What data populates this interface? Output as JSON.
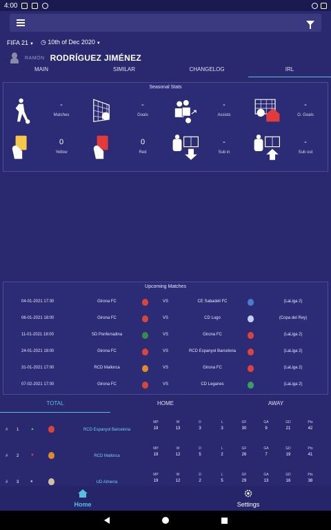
{
  "status": {
    "time": "4:00"
  },
  "selectors": {
    "game": "FIFA 21",
    "date": "10th of Dec 2020"
  },
  "player": {
    "first": "RAMÓN",
    "last": "RODRÍGUEZ JIMÉNEZ"
  },
  "tabs": [
    "MAIN",
    "SIMILAR",
    "CHANGELOG",
    "IRL"
  ],
  "stats": {
    "title": "Seasonal Stats",
    "items": [
      {
        "value": "-",
        "label": "Matches",
        "icon": "player-kick-icon"
      },
      {
        "value": "-",
        "label": "Goals",
        "icon": "goal-net-icon"
      },
      {
        "value": "-",
        "label": "Assists",
        "icon": "assist-icon"
      },
      {
        "value": "-",
        "label": "O. Goals",
        "icon": "own-goal-icon"
      },
      {
        "value": "0",
        "label": "Yellow",
        "icon": "yellow-card-icon"
      },
      {
        "value": "0",
        "label": "Red",
        "icon": "red-card-icon"
      },
      {
        "value": "-",
        "label": "Sub in",
        "icon": "sub-in-icon"
      },
      {
        "value": "-",
        "label": "Sub out",
        "icon": "sub-out-icon"
      }
    ]
  },
  "matches": {
    "title": "Upcoming Matches",
    "vs": "VS",
    "rows": [
      {
        "date": "04-01-2021 17:30",
        "home": "Girona FC",
        "away": "CE Sabadell FC",
        "comp": "(LaLiga 2)",
        "home_color": "#d9443c",
        "away_color": "#4a7bd0"
      },
      {
        "date": "06-01-2021 18:00",
        "home": "Girona FC",
        "away": "CD Lugo",
        "comp": "(Copa del Rey)",
        "home_color": "#d9443c",
        "away_color": "#c0d0f0"
      },
      {
        "date": "11-01-2021 18:00",
        "home": "SD Ponferradina",
        "away": "Girona FC",
        "comp": "(LaLiga 2)",
        "home_color": "#3a8a4a",
        "away_color": "#d9443c"
      },
      {
        "date": "24-01-2021 18:00",
        "home": "Girona FC",
        "away": "RCD Espanyol Barcelona",
        "comp": "(LaLiga 2)",
        "home_color": "#d9443c",
        "away_color": "#d9443c"
      },
      {
        "date": "31-01-2021 17:00",
        "home": "RCD Mallorca",
        "away": "Girona FC",
        "comp": "(LaLiga 2)",
        "home_color": "#e08a2a",
        "away_color": "#d9443c"
      },
      {
        "date": "07-02-2021 17:00",
        "home": "Girona FC",
        "away": "CD Leganes",
        "comp": "(LaLiga 2)",
        "home_color": "#d9443c",
        "away_color": "#3aa060"
      }
    ]
  },
  "standings": {
    "tabs": [
      "TOTAL",
      "HOME",
      "AWAY"
    ],
    "headers": [
      "MP",
      "W",
      "D",
      "L",
      "GF",
      "GA",
      "GD",
      "Pts"
    ],
    "rows": [
      {
        "hash": "#",
        "pos": "1",
        "trend": "▲",
        "trend_color": "#3cc070",
        "team": "RCD Espanyol Barcelona",
        "crest_color": "#d9443c",
        "values": [
          "19",
          "13",
          "3",
          "3",
          "30",
          "9",
          "21",
          "42"
        ]
      },
      {
        "hash": "#",
        "pos": "2",
        "trend": "▼",
        "trend_color": "#e04050",
        "team": "RCD Mallorca",
        "crest_color": "#e08a2a",
        "values": [
          "19",
          "12",
          "5",
          "2",
          "26",
          "7",
          "19",
          "41"
        ]
      },
      {
        "hash": "#",
        "pos": "3",
        "trend": "●",
        "trend_color": "#c8c8e0",
        "team": "UD Almería",
        "crest_color": "#d0c0a0",
        "values": [
          "19",
          "12",
          "2",
          "5",
          "29",
          "13",
          "16",
          "38"
        ]
      }
    ]
  },
  "nav": {
    "home": "Home",
    "settings": "Settings"
  }
}
